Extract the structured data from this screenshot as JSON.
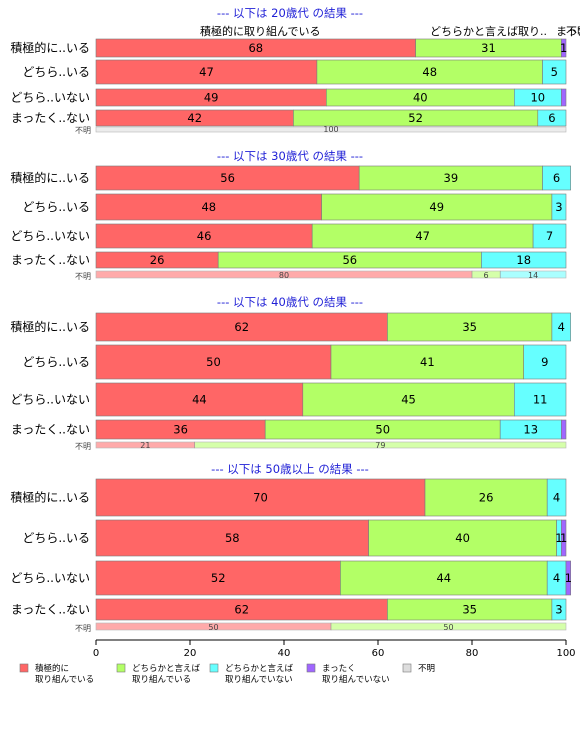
{
  "chart_data": {
    "type": "bar",
    "stacked": true,
    "orientation": "horizontal",
    "xlim": [
      0,
      100
    ],
    "xticks": [
      "0",
      "20",
      "40",
      "60",
      "80",
      "100"
    ],
    "colors": [
      "#ff6666",
      "#b3ff66",
      "#66ffff",
      "#a066ff",
      "#dddddd"
    ],
    "series_names": [
      "積極的に取り組んでいる",
      "どちらかと言えば取り組んでいる",
      "どちらかと言えば取り組んでいない",
      "まったく取り組んでいない",
      "不明"
    ],
    "legend": [
      {
        "line1": "積極的に",
        "line2": "取り組んでいる",
        "color": "#ff6666"
      },
      {
        "line1": "どちらかと言えば",
        "line2": "取り組んでいる",
        "color": "#b3ff66"
      },
      {
        "line1": "どちらかと言えば",
        "line2": "取り組んでいない",
        "color": "#66ffff"
      },
      {
        "line1": "まったく",
        "line2": "取り組んでいない",
        "color": "#a066ff"
      },
      {
        "line1": "不明",
        "line2": "",
        "color": "#dddddd"
      }
    ],
    "header_labels": [
      "積極的に取り組んでいる",
      "どちらかと言えば取り..",
      "まった..",
      "不明"
    ],
    "panels": [
      {
        "title": "--- 以下は 20歳代 の結果 ---",
        "rows": [
          {
            "label": "積極的に..いる",
            "values": [
              68,
              31,
              0,
              1,
              0
            ],
            "shown": [
              "68",
              "31",
              "",
              "1",
              ""
            ]
          },
          {
            "label": "どちら..いる",
            "values": [
              47,
              48,
              5,
              0,
              0
            ],
            "shown": [
              "47",
              "48",
              "5",
              "",
              ""
            ]
          },
          {
            "label": "どちら..いない",
            "values": [
              49,
              40,
              10,
              1,
              0
            ],
            "shown": [
              "49",
              "40",
              "10",
              "",
              ""
            ]
          },
          {
            "label": "まったく..ない",
            "values": [
              42,
              52,
              6,
              0,
              0
            ],
            "shown": [
              "42",
              "52",
              "6",
              "",
              ""
            ]
          },
          {
            "label": "不明",
            "values": [
              0,
              0,
              0,
              0,
              100
            ],
            "shown": [
              "",
              "",
              "",
              "",
              "100"
            ]
          }
        ]
      },
      {
        "title": "--- 以下は 30歳代 の結果 ---",
        "rows": [
          {
            "label": "積極的に..いる",
            "values": [
              56,
              39,
              6,
              0,
              0
            ],
            "shown": [
              "56",
              "39",
              "6",
              "",
              ""
            ]
          },
          {
            "label": "どちら..いる",
            "values": [
              48,
              49,
              3,
              0,
              0
            ],
            "shown": [
              "48",
              "49",
              "3",
              "",
              ""
            ]
          },
          {
            "label": "どちら..いない",
            "values": [
              46,
              47,
              7,
              0,
              0
            ],
            "shown": [
              "46",
              "47",
              "7",
              "",
              ""
            ]
          },
          {
            "label": "まったく..ない",
            "values": [
              26,
              56,
              18,
              0,
              0
            ],
            "shown": [
              "26",
              "56",
              "18",
              "",
              ""
            ]
          },
          {
            "label": "不明",
            "values": [
              80,
              6,
              14,
              0,
              0
            ],
            "shown": [
              "80",
              "6",
              "14",
              "",
              ""
            ]
          }
        ]
      },
      {
        "title": "--- 以下は 40歳代 の結果 ---",
        "rows": [
          {
            "label": "積極的に..いる",
            "values": [
              62,
              35,
              4,
              0,
              0
            ],
            "shown": [
              "62",
              "35",
              "4",
              "",
              ""
            ]
          },
          {
            "label": "どちら..いる",
            "values": [
              50,
              41,
              9,
              0,
              0
            ],
            "shown": [
              "50",
              "41",
              "9",
              "",
              ""
            ]
          },
          {
            "label": "どちら..いない",
            "values": [
              44,
              45,
              11,
              0,
              0
            ],
            "shown": [
              "44",
              "45",
              "11",
              "",
              ""
            ]
          },
          {
            "label": "まったく..ない",
            "values": [
              36,
              50,
              13,
              1,
              0
            ],
            "shown": [
              "36",
              "50",
              "13",
              "",
              ""
            ]
          },
          {
            "label": "不明",
            "values": [
              21,
              79,
              0,
              0,
              0
            ],
            "shown": [
              "21",
              "79",
              "",
              "",
              ""
            ]
          }
        ]
      },
      {
        "title": "--- 以下は 50歳以上 の結果 ---",
        "rows": [
          {
            "label": "積極的に..いる",
            "values": [
              70,
              26,
              4,
              0,
              0
            ],
            "shown": [
              "70",
              "26",
              "4",
              "",
              ""
            ]
          },
          {
            "label": "どちら..いる",
            "values": [
              58,
              40,
              1,
              1,
              0
            ],
            "shown": [
              "58",
              "40",
              "1",
              "1",
              ""
            ]
          },
          {
            "label": "どちら..いない",
            "values": [
              52,
              44,
              4,
              1,
              0
            ],
            "shown": [
              "52",
              "44",
              "4",
              "1",
              ""
            ]
          },
          {
            "label": "まったく..ない",
            "values": [
              62,
              35,
              3,
              0,
              0
            ],
            "shown": [
              "62",
              "35",
              "3",
              "",
              ""
            ]
          },
          {
            "label": "不明",
            "values": [
              50,
              50,
              0,
              0,
              0
            ],
            "shown": [
              "50",
              "50",
              "",
              "",
              ""
            ]
          }
        ]
      }
    ]
  }
}
